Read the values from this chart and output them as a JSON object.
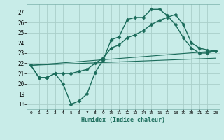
{
  "xlabel": "Humidex (Indice chaleur)",
  "bg_color": "#c8ece8",
  "grid_color": "#aacfc9",
  "line_color": "#1a6b5a",
  "xlim": [
    -0.5,
    23.5
  ],
  "ylim": [
    17.5,
    27.8
  ],
  "yticks": [
    18,
    19,
    20,
    21,
    22,
    23,
    24,
    25,
    26,
    27
  ],
  "xticks": [
    0,
    1,
    2,
    3,
    4,
    5,
    6,
    7,
    8,
    9,
    10,
    11,
    12,
    13,
    14,
    15,
    16,
    17,
    18,
    19,
    20,
    21,
    22,
    23
  ],
  "lines": [
    {
      "x": [
        0,
        1,
        2,
        3,
        4,
        5,
        6,
        7,
        8,
        9,
        10,
        11,
        12,
        13,
        14,
        15,
        16,
        17,
        18,
        19,
        20,
        21,
        22,
        23
      ],
      "y": [
        21.8,
        20.6,
        20.6,
        21.0,
        20.0,
        18.0,
        18.3,
        19.0,
        21.1,
        22.3,
        24.3,
        24.6,
        26.3,
        26.5,
        26.5,
        27.3,
        27.3,
        26.7,
        25.8,
        24.5,
        23.5,
        23.0,
        23.0,
        23.2
      ],
      "marker": "D",
      "markersize": 2.5,
      "lw": 1.0
    },
    {
      "x": [
        0,
        1,
        2,
        3,
        4,
        5,
        6,
        7,
        8,
        9,
        10,
        11,
        12,
        13,
        14,
        15,
        16,
        17,
        18,
        19,
        20,
        21,
        22,
        23
      ],
      "y": [
        21.8,
        20.6,
        20.6,
        21.0,
        21.0,
        21.0,
        21.2,
        21.4,
        22.0,
        22.5,
        23.5,
        23.8,
        24.5,
        24.8,
        25.2,
        25.8,
        26.2,
        26.5,
        26.8,
        25.8,
        24.0,
        23.5,
        23.3,
        23.2
      ],
      "marker": "D",
      "markersize": 2.5,
      "lw": 1.0
    },
    {
      "x": [
        0,
        23
      ],
      "y": [
        21.8,
        23.2
      ],
      "marker": null,
      "markersize": 0,
      "lw": 0.8
    },
    {
      "x": [
        0,
        23
      ],
      "y": [
        21.8,
        22.5
      ],
      "marker": null,
      "markersize": 0,
      "lw": 0.8
    }
  ]
}
